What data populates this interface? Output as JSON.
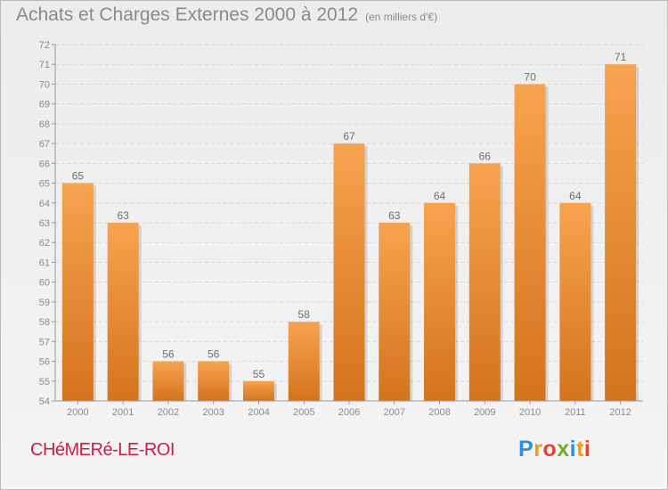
{
  "title": "Achats et Charges Externes 2000 à 2012",
  "unit": "(en milliers d'€)",
  "place": "CHéMERé-LE-ROI",
  "logo": {
    "letters": [
      "P",
      "r",
      "o",
      "x",
      "i",
      "t",
      "i"
    ],
    "colors": [
      "#2f8fd8",
      "#f29a1c",
      "#e8422f",
      "#6aaf2e",
      "#2f8fd8",
      "#f29a1c",
      "#e8422f"
    ]
  },
  "colors": {
    "bar_light": "#f7a350",
    "bar_dark": "#d4731d",
    "text": "#8a8a8a",
    "place": "#cc1e42"
  },
  "chart_data": {
    "type": "bar",
    "title": "Achats et Charges Externes 2000 à 2012",
    "subtitle": "(en milliers d'€)",
    "categories": [
      "2000",
      "2001",
      "2002",
      "2003",
      "2004",
      "2005",
      "2006",
      "2007",
      "2008",
      "2009",
      "2010",
      "2011",
      "2012"
    ],
    "values": [
      65,
      63,
      56,
      56,
      55,
      58,
      67,
      63,
      64,
      66,
      70,
      64,
      71
    ],
    "ylim": [
      54,
      72
    ],
    "yticks": [
      54,
      55,
      56,
      57,
      58,
      59,
      60,
      61,
      62,
      63,
      64,
      65,
      66,
      67,
      68,
      69,
      70,
      71,
      72
    ],
    "grid": true,
    "data_labels": true
  }
}
